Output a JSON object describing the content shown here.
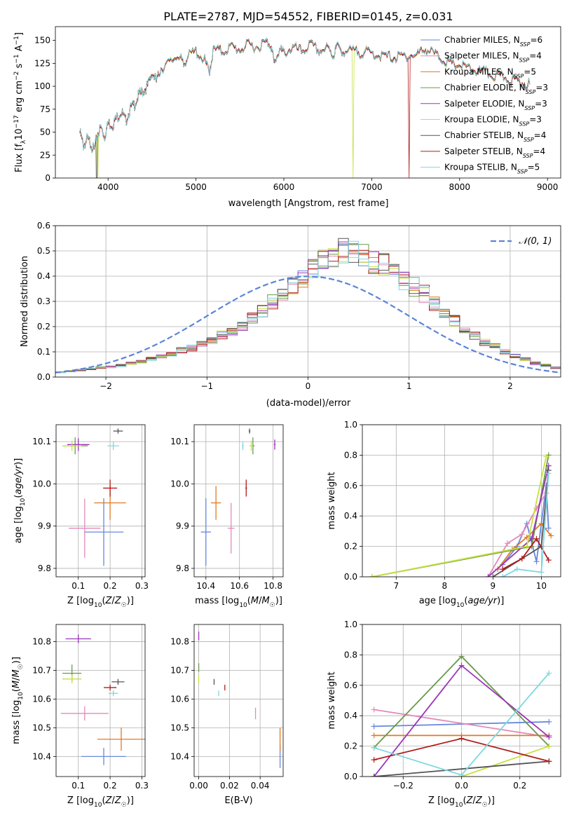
{
  "title": "PLATE=2787, MJD=54552, FIBERID=0145, z=0.031",
  "models": [
    {
      "key": "chab_miles",
      "label": "Chabrier MILES, N",
      "n": "6",
      "color": "#6688dd"
    },
    {
      "key": "salp_miles",
      "label": "Salpeter MILES, N",
      "n": "4",
      "color": "#e48aba"
    },
    {
      "key": "krou_miles",
      "label": "Kroupa MILES, N",
      "n": "5",
      "color": "#e07a22"
    },
    {
      "key": "chab_elodie",
      "label": "Chabrier ELODIE, N",
      "n": "3",
      "color": "#6a9a4a"
    },
    {
      "key": "salp_elodie",
      "label": "Salpeter ELODIE, N",
      "n": "3",
      "color": "#9b35b8"
    },
    {
      "key": "krou_elodie",
      "label": "Kroupa ELODIE, N",
      "n": "3",
      "color": "#c8e040"
    },
    {
      "key": "chab_stelib",
      "label": "Chabrier STELIB, N",
      "n": "4",
      "color": "#555555"
    },
    {
      "key": "salp_stelib",
      "label": "Salpeter STELIB, N",
      "n": "4",
      "color": "#b01c1c"
    },
    {
      "key": "krou_stelib",
      "label": "Kroupa STELIB, N",
      "n": "5",
      "color": "#7fd8e0"
    }
  ],
  "chart_data": [
    {
      "type": "line",
      "name": "spectrum",
      "xlabel": "wavelength [Angstrom, rest frame]",
      "ylabel": "Flux [f_λ 10^-17 erg cm^-2 s^-1 A^-1]",
      "xlim": [
        3400,
        9150
      ],
      "ylim": [
        0,
        165
      ],
      "xticks": [
        "4000",
        "5000",
        "6000",
        "7000",
        "8000",
        "9000"
      ],
      "yticks": [
        "0",
        "25",
        "50",
        "75",
        "100",
        "125",
        "150"
      ],
      "spectrum_x": [
        3680,
        3720,
        3760,
        3800,
        3840,
        3880,
        3920,
        3960,
        4000,
        4050,
        4100,
        4150,
        4200,
        4250,
        4300,
        4350,
        4400,
        4450,
        4500,
        4550,
        4600,
        4700,
        4800,
        4860,
        4900,
        5000,
        5100,
        5150,
        5200,
        5300,
        5400,
        5500,
        5600,
        5700,
        5800,
        5850,
        5890,
        5950,
        6000,
        6100,
        6200,
        6300,
        6400,
        6500,
        6563,
        6600,
        6700,
        6800,
        6900,
        7000,
        7100,
        7200,
        7300,
        7400,
        7500,
        7600,
        7700,
        7800,
        7900,
        8000,
        8100,
        8200,
        8300,
        8400,
        8500,
        8600,
        8700,
        8800
      ],
      "spectrum_y": [
        50,
        35,
        42,
        38,
        30,
        48,
        55,
        45,
        60,
        58,
        66,
        72,
        62,
        75,
        80,
        90,
        95,
        100,
        115,
        105,
        120,
        125,
        135,
        122,
        132,
        138,
        128,
        115,
        140,
        138,
        143,
        140,
        145,
        143,
        148,
        146,
        125,
        140,
        136,
        142,
        138,
        145,
        139,
        141,
        133,
        143,
        138,
        138,
        137,
        136,
        133,
        132,
        131,
        134,
        133,
        141,
        136,
        130,
        124,
        123,
        119,
        117,
        115,
        111,
        110,
        107,
        104,
        102
      ],
      "dropouts": [
        {
          "model": "krou_elodie",
          "x": 6790
        },
        {
          "model": "salp_stelib",
          "x": 7420
        },
        {
          "model": "chab_stelib",
          "x": 3870
        },
        {
          "model": "krou_elodie",
          "x": 3880
        }
      ]
    },
    {
      "type": "bar",
      "name": "residual_histogram",
      "xlabel": "(data-model)/error",
      "ylabel": "Normed distribution",
      "xlim": [
        -2.5,
        2.5
      ],
      "ylim": [
        0,
        0.6
      ],
      "xticks": [
        "−2",
        "−1",
        "0",
        "1",
        "2"
      ],
      "yticks": [
        "0.0",
        "0.1",
        "0.2",
        "0.3",
        "0.4",
        "0.5",
        "0.6"
      ],
      "bin_edges_start": -2.5,
      "bin_width": 0.1,
      "envelope": [
        0.02,
        0.025,
        0.03,
        0.035,
        0.04,
        0.045,
        0.05,
        0.06,
        0.065,
        0.08,
        0.09,
        0.1,
        0.115,
        0.125,
        0.14,
        0.16,
        0.18,
        0.2,
        0.22,
        0.25,
        0.28,
        0.32,
        0.35,
        0.39,
        0.42,
        0.46,
        0.5,
        0.52,
        0.54,
        0.53,
        0.52,
        0.5,
        0.48,
        0.46,
        0.42,
        0.39,
        0.36,
        0.32,
        0.27,
        0.24,
        0.21,
        0.18,
        0.15,
        0.13,
        0.11,
        0.09,
        0.075,
        0.06,
        0.05,
        0.04
      ],
      "normal_label": "𝒩(0, 1)"
    },
    {
      "type": "scatter",
      "name": "age_vs_Z",
      "xlabel": "Z [log10(Z/Z☉)]",
      "ylabel": "age [log10(age/yr)]",
      "xlim": [
        0.03,
        0.31
      ],
      "ylim": [
        9.78,
        10.14
      ],
      "xticks": [
        "0.1",
        "0.2",
        "0.3"
      ],
      "yticks": [
        "9.8",
        "9.9",
        "10.0",
        "10.1"
      ],
      "points": [
        {
          "model": "chab_miles",
          "x": 0.18,
          "y": 9.886,
          "xerr": 0.062,
          "yerr": 0.08
        },
        {
          "model": "salp_miles",
          "x": 0.12,
          "y": 9.895,
          "xerr": 0.05,
          "yerr": 0.07
        },
        {
          "model": "krou_miles",
          "x": 0.2,
          "y": 9.955,
          "xerr": 0.05,
          "yerr": 0.04
        },
        {
          "model": "chab_elodie",
          "x": 0.09,
          "y": 10.09,
          "xerr": 0.04,
          "yerr": 0.02
        },
        {
          "model": "salp_elodie",
          "x": 0.1,
          "y": 10.093,
          "xerr": 0.035,
          "yerr": 0.015
        },
        {
          "model": "krou_elodie",
          "x": 0.08,
          "y": 10.09,
          "xerr": 0.03,
          "yerr": 0.012
        },
        {
          "model": "chab_stelib",
          "x": 0.225,
          "y": 10.125,
          "xerr": 0.015,
          "yerr": 0.006
        },
        {
          "model": "salp_stelib",
          "x": 0.2,
          "y": 9.99,
          "xerr": 0.022,
          "yerr": 0.02
        },
        {
          "model": "krou_stelib",
          "x": 0.21,
          "y": 10.09,
          "xerr": 0.018,
          "yerr": 0.01
        }
      ]
    },
    {
      "type": "scatter",
      "name": "age_vs_mass",
      "xlabel": "mass [log10(M/M☉)]",
      "ylabel": "",
      "xlim": [
        10.33,
        10.86
      ],
      "ylim": [
        9.78,
        10.14
      ],
      "xticks": [
        "10.4",
        "10.6",
        "10.8"
      ],
      "yticks": [
        "9.8",
        "9.9",
        "10.0",
        "10.1"
      ],
      "points": [
        {
          "model": "chab_miles",
          "x": 10.4,
          "y": 9.886,
          "xerr": 0.03,
          "yerr": 0.08
        },
        {
          "model": "salp_miles",
          "x": 10.55,
          "y": 9.895,
          "xerr": 0.02,
          "yerr": 0.06
        },
        {
          "model": "krou_miles",
          "x": 10.46,
          "y": 9.955,
          "xerr": 0.03,
          "yerr": 0.04
        },
        {
          "model": "chab_elodie",
          "x": 10.68,
          "y": 10.09,
          "xerr": 0.01,
          "yerr": 0.02
        },
        {
          "model": "salp_elodie",
          "x": 10.81,
          "y": 10.093,
          "xerr": 0.005,
          "yerr": 0.012
        },
        {
          "model": "krou_elodie",
          "x": 10.67,
          "y": 10.09,
          "xerr": 0.01,
          "yerr": 0.012
        },
        {
          "model": "chab_stelib",
          "x": 10.66,
          "y": 10.125,
          "xerr": 0.005,
          "yerr": 0.006
        },
        {
          "model": "salp_stelib",
          "x": 10.64,
          "y": 9.99,
          "xerr": 0.005,
          "yerr": 0.02
        },
        {
          "model": "krou_stelib",
          "x": 10.62,
          "y": 10.09,
          "xerr": 0.005,
          "yerr": 0.01
        }
      ]
    },
    {
      "type": "line",
      "name": "weight_vs_age",
      "xlabel": "age [log10(age/yr)]",
      "ylabel": "mass weight",
      "xlim": [
        6.3,
        10.4
      ],
      "ylim": [
        0,
        1
      ],
      "xticks": [
        "7",
        "8",
        "9",
        "10"
      ],
      "yticks": [
        "0.0",
        "0.2",
        "0.4",
        "0.6",
        "0.8",
        "1.0"
      ],
      "series": [
        {
          "model": "chab_miles",
          "x": [
            9.2,
            9.5,
            9.7,
            9.9,
            10.1,
            10.15
          ],
          "y": [
            0.08,
            0.2,
            0.35,
            0.1,
            0.6,
            0.32
          ]
        },
        {
          "model": "salp_miles",
          "x": [
            8.9,
            9.3,
            9.6,
            9.9,
            10.1
          ],
          "y": [
            0.0,
            0.22,
            0.28,
            0.45,
            0.55
          ]
        },
        {
          "model": "krou_miles",
          "x": [
            9.1,
            9.4,
            9.7,
            10.0,
            10.2
          ],
          "y": [
            0.05,
            0.18,
            0.26,
            0.35,
            0.27
          ]
        },
        {
          "model": "chab_elodie",
          "x": [
            6.5,
            9.8,
            10.15
          ],
          "y": [
            0.0,
            0.2,
            0.8
          ]
        },
        {
          "model": "salp_elodie",
          "x": [
            8.9,
            9.8,
            10.15
          ],
          "y": [
            0.0,
            0.25,
            0.73
          ]
        },
        {
          "model": "krou_elodie",
          "x": [
            6.5,
            9.7,
            10.1
          ],
          "y": [
            0.0,
            0.2,
            0.79
          ]
        },
        {
          "model": "chab_stelib",
          "x": [
            9.0,
            9.6,
            10.0,
            10.15
          ],
          "y": [
            0.0,
            0.12,
            0.2,
            0.7
          ]
        },
        {
          "model": "salp_stelib",
          "x": [
            9.2,
            9.6,
            9.9,
            10.15
          ],
          "y": [
            0.05,
            0.12,
            0.25,
            0.11
          ]
        },
        {
          "model": "krou_stelib",
          "x": [
            9.2,
            9.5,
            10.0,
            10.15
          ],
          "y": [
            0.0,
            0.05,
            0.03,
            0.68
          ]
        }
      ]
    },
    {
      "type": "scatter",
      "name": "mass_vs_Z",
      "xlabel": "Z [log10(Z/Z☉)]",
      "ylabel": "mass [log10(M/M☉)]",
      "xlim": [
        0.03,
        0.31
      ],
      "ylim": [
        10.33,
        10.86
      ],
      "xticks": [
        "0.1",
        "0.2",
        "0.3"
      ],
      "yticks": [
        "10.4",
        "10.5",
        "10.6",
        "10.7",
        "10.8"
      ],
      "points": [
        {
          "model": "chab_miles",
          "x": 0.18,
          "y": 10.4,
          "xerr": 0.07,
          "yerr": 0.03
        },
        {
          "model": "salp_miles",
          "x": 0.12,
          "y": 10.55,
          "xerr": 0.075,
          "yerr": 0.025
        },
        {
          "model": "krou_miles",
          "x": 0.235,
          "y": 10.46,
          "xerr": 0.075,
          "yerr": 0.04
        },
        {
          "model": "chab_elodie",
          "x": 0.08,
          "y": 10.69,
          "xerr": 0.03,
          "yerr": 0.03
        },
        {
          "model": "salp_elodie",
          "x": 0.1,
          "y": 10.81,
          "xerr": 0.04,
          "yerr": 0.015
        },
        {
          "model": "krou_elodie",
          "x": 0.08,
          "y": 10.67,
          "xerr": 0.03,
          "yerr": 0.015
        },
        {
          "model": "chab_stelib",
          "x": 0.225,
          "y": 10.66,
          "xerr": 0.02,
          "yerr": 0.01
        },
        {
          "model": "salp_stelib",
          "x": 0.2,
          "y": 10.64,
          "xerr": 0.02,
          "yerr": 0.01
        },
        {
          "model": "krou_stelib",
          "x": 0.21,
          "y": 10.62,
          "xerr": 0.015,
          "yerr": 0.01
        }
      ]
    },
    {
      "type": "scatter",
      "name": "mass_vs_ebv",
      "xlabel": "E(B-V)",
      "ylabel": "",
      "xlim": [
        -0.003,
        0.055
      ],
      "ylim": [
        10.33,
        10.86
      ],
      "xticks": [
        "0.00",
        "0.02",
        "0.04"
      ],
      "yticks": [
        "10.4",
        "10.5",
        "10.6",
        "10.7",
        "10.8"
      ],
      "points": [
        {
          "model": "chab_miles",
          "x": 0.053,
          "y": 10.4,
          "xerr": 0,
          "yerr": 0.04
        },
        {
          "model": "salp_miles",
          "x": 0.037,
          "y": 10.55,
          "xerr": 0,
          "yerr": 0.02
        },
        {
          "model": "krou_miles",
          "x": 0.053,
          "y": 10.46,
          "xerr": 0,
          "yerr": 0.04
        },
        {
          "model": "chab_elodie",
          "x": 0.0,
          "y": 10.71,
          "xerr": 0,
          "yerr": 0.015
        },
        {
          "model": "salp_elodie",
          "x": 0.0,
          "y": 10.82,
          "xerr": 0,
          "yerr": 0.015
        },
        {
          "model": "krou_elodie",
          "x": 0.0,
          "y": 10.67,
          "xerr": 0,
          "yerr": 0.015
        },
        {
          "model": "chab_stelib",
          "x": 0.01,
          "y": 10.66,
          "xerr": 0,
          "yerr": 0.01
        },
        {
          "model": "salp_stelib",
          "x": 0.017,
          "y": 10.64,
          "xerr": 0,
          "yerr": 0.01
        },
        {
          "model": "krou_stelib",
          "x": 0.013,
          "y": 10.62,
          "xerr": 0,
          "yerr": 0.01
        }
      ]
    },
    {
      "type": "line",
      "name": "weight_vs_Z",
      "xlabel": "Z [log10(Z/Z☉)]",
      "ylabel": "mass weight",
      "xlim": [
        -0.34,
        0.34
      ],
      "ylim": [
        0,
        1
      ],
      "xticks": [
        "−0.2",
        "0.0",
        "0.2"
      ],
      "yticks": [
        "0.0",
        "0.2",
        "0.4",
        "0.6",
        "0.8",
        "1.0"
      ],
      "series": [
        {
          "model": "chab_miles",
          "x": [
            -0.3,
            0.3
          ],
          "y": [
            0.33,
            0.36
          ]
        },
        {
          "model": "salp_miles",
          "x": [
            -0.3,
            0.3
          ],
          "y": [
            0.44,
            0.26
          ]
        },
        {
          "model": "krou_miles",
          "x": [
            -0.3,
            0.0,
            0.3
          ],
          "y": [
            0.27,
            0.27,
            0.27
          ]
        },
        {
          "model": "chab_elodie",
          "x": [
            -0.3,
            0.0,
            0.3
          ],
          "y": [
            0.19,
            0.79,
            0.2
          ]
        },
        {
          "model": "salp_elodie",
          "x": [
            -0.3,
            0.0,
            0.3
          ],
          "y": [
            0.0,
            0.73,
            0.26
          ]
        },
        {
          "model": "krou_elodie",
          "x": [
            0.0,
            0.3
          ],
          "y": [
            0.0,
            0.2
          ]
        },
        {
          "model": "chab_stelib",
          "x": [
            -0.3,
            0.3
          ],
          "y": [
            0.0,
            0.1
          ]
        },
        {
          "model": "salp_stelib",
          "x": [
            -0.3,
            0.0,
            0.3
          ],
          "y": [
            0.11,
            0.25,
            0.1
          ]
        },
        {
          "model": "krou_stelib",
          "x": [
            -0.3,
            0.0,
            0.3
          ],
          "y": [
            0.19,
            0.01,
            0.68
          ]
        }
      ]
    }
  ]
}
